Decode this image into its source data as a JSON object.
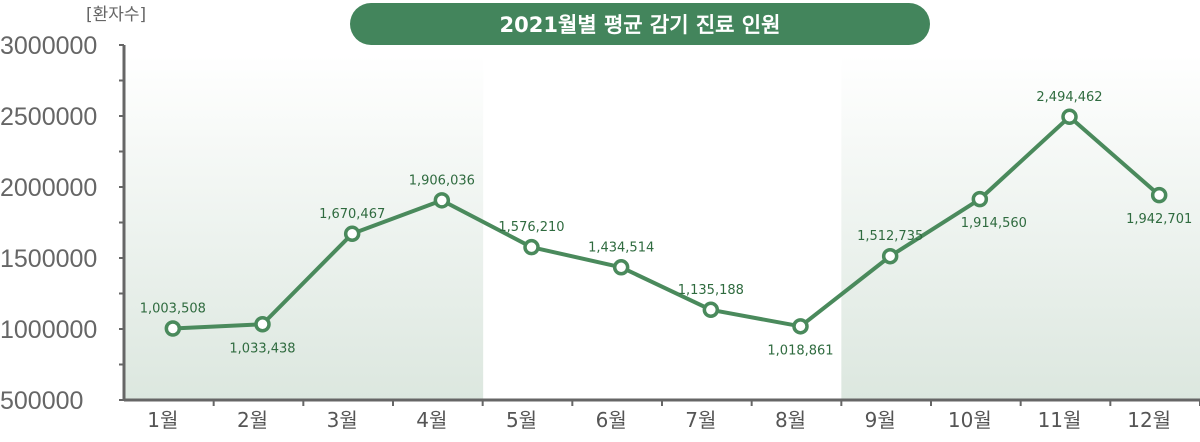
{
  "chart_data": {
    "type": "line",
    "title": "2021월별 평균 감기 진료 인원",
    "ylabel": "[환자수]",
    "xlabel": "",
    "categories": [
      "1월",
      "2월",
      "3월",
      "4월",
      "5월",
      "6월",
      "7월",
      "8월",
      "9월",
      "10월",
      "11월",
      "12월"
    ],
    "values": [
      1003508,
      1033438,
      1670467,
      1906036,
      1576210,
      1434514,
      1135188,
      1018861,
      1512735,
      1914560,
      2494462,
      1942701
    ],
    "data_labels": [
      "1,003,508",
      "1,033,438",
      "1,670,467",
      "1,906,036",
      "1,576,210",
      "1,434,514",
      "1,135,188",
      "1,018,861",
      "1,512,735",
      "1,914,560",
      "2,494,462",
      "1,942,701"
    ],
    "yticks": [
      "3000000",
      "2500000",
      "2000000",
      "1500000",
      "1000000",
      "500000"
    ],
    "ylim": [
      500000,
      3000000
    ],
    "grid": false,
    "legend": "none",
    "shaded_months": [
      "1월",
      "2월",
      "3월",
      "4월",
      "9월",
      "10월",
      "11월",
      "12월"
    ],
    "colors": {
      "line": "#4a8a5c",
      "title_bg": "#43855c",
      "label": "#2f6b3f",
      "shade": "#dce7df",
      "axis": "#666666"
    }
  }
}
